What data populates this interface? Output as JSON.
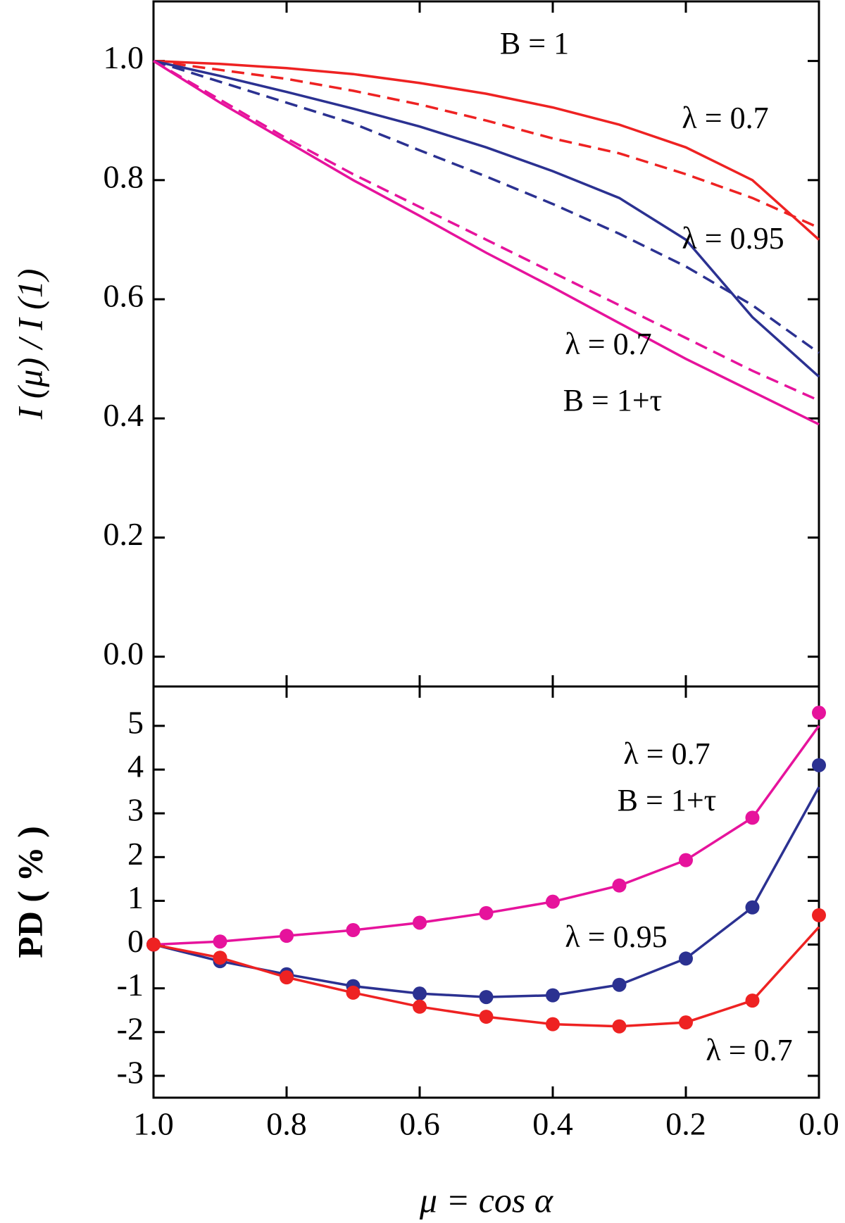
{
  "chart_data": [
    {
      "type": "line",
      "y_label": "I (μ) / I (1)",
      "xlim": [
        1.0,
        0.0
      ],
      "ylim": [
        -0.05,
        1.1
      ],
      "yticks": [
        {
          "value": 0,
          "label": "0.0"
        },
        {
          "value": 0.2,
          "label": "0.2"
        },
        {
          "value": 0.4,
          "label": "0.4"
        },
        {
          "value": 0.6,
          "label": "0.6"
        },
        {
          "value": 0.8,
          "label": "0.8"
        },
        {
          "value": 1.0,
          "label": "1.0"
        }
      ],
      "x": [
        1.0,
        0.9,
        0.8,
        0.7,
        0.6,
        0.5,
        0.4,
        0.3,
        0.2,
        0.1,
        0.0
      ],
      "series": [
        {
          "color": "#ee2222",
          "dashed": false,
          "values": [
            1.0,
            0.995,
            0.988,
            0.978,
            0.963,
            0.945,
            0.922,
            0.893,
            0.855,
            0.8,
            0.7
          ]
        },
        {
          "color": "#ee2222",
          "dashed": true,
          "values": [
            1.0,
            0.985,
            0.97,
            0.95,
            0.927,
            0.9,
            0.87,
            0.845,
            0.81,
            0.77,
            0.72
          ]
        },
        {
          "color": "#2b3191",
          "dashed": false,
          "values": [
            1.0,
            0.975,
            0.948,
            0.92,
            0.89,
            0.855,
            0.815,
            0.77,
            0.7,
            0.57,
            0.47
          ]
        },
        {
          "color": "#2b3191",
          "dashed": true,
          "values": [
            1.0,
            0.965,
            0.93,
            0.895,
            0.85,
            0.806,
            0.76,
            0.71,
            0.655,
            0.59,
            0.51
          ]
        },
        {
          "color": "#e6139c",
          "dashed": false,
          "values": [
            1.0,
            0.93,
            0.865,
            0.8,
            0.74,
            0.678,
            0.62,
            0.56,
            0.5,
            0.445,
            0.39
          ]
        },
        {
          "color": "#e6139c",
          "dashed": true,
          "values": [
            1.0,
            0.935,
            0.87,
            0.81,
            0.755,
            0.7,
            0.645,
            0.59,
            0.535,
            0.48,
            0.43
          ]
        }
      ],
      "annotations": [
        "B = 1",
        "λ = 0.7",
        "λ = 0.95",
        "λ = 0.7",
        "B = 1+τ"
      ]
    },
    {
      "type": "line",
      "x_label": "μ = cos α",
      "y_label": "PD ( % )",
      "xlim": [
        1.0,
        0.0
      ],
      "ylim": [
        -3.5,
        5.9
      ],
      "xticks": [
        {
          "value": 1.0,
          "label": "1.0"
        },
        {
          "value": 0.8,
          "label": "0.8"
        },
        {
          "value": 0.6,
          "label": "0.6"
        },
        {
          "value": 0.4,
          "label": "0.4"
        },
        {
          "value": 0.2,
          "label": "0.2"
        },
        {
          "value": 0.0,
          "label": "0.0"
        }
      ],
      "yticks": [
        -3,
        -2,
        -1,
        0,
        1,
        2,
        3,
        4,
        5
      ],
      "x": [
        1.0,
        0.9,
        0.8,
        0.7,
        0.6,
        0.5,
        0.4,
        0.3,
        0.2,
        0.1,
        0.0
      ],
      "series": [
        {
          "color": "#e6139c",
          "values": [
            0,
            0.07,
            0.2,
            0.33,
            0.5,
            0.72,
            0.98,
            1.35,
            1.93,
            2.9,
            5.0
          ],
          "marker_values": [
            0,
            0.07,
            0.2,
            0.33,
            0.5,
            0.72,
            0.98,
            1.35,
            1.93,
            2.9,
            5.3
          ]
        },
        {
          "color": "#2b3191",
          "values": [
            0,
            -0.38,
            -0.68,
            -0.95,
            -1.12,
            -1.2,
            -1.16,
            -0.92,
            -0.32,
            0.85,
            3.6
          ],
          "marker_values": [
            0,
            -0.38,
            -0.68,
            -0.95,
            -1.12,
            -1.2,
            -1.16,
            -0.92,
            -0.32,
            0.85,
            4.1
          ]
        },
        {
          "color": "#ee2222",
          "values": [
            0,
            -0.3,
            -0.75,
            -1.1,
            -1.42,
            -1.65,
            -1.82,
            -1.87,
            -1.78,
            -1.28,
            0.4
          ],
          "marker_values": [
            0,
            -0.3,
            -0.75,
            -1.1,
            -1.42,
            -1.65,
            -1.82,
            -1.87,
            -1.78,
            -1.28,
            0.67
          ]
        }
      ],
      "annotations": [
        "λ = 0.7",
        "B = 1+τ",
        "λ = 0.95",
        "λ = 0.7"
      ]
    }
  ]
}
